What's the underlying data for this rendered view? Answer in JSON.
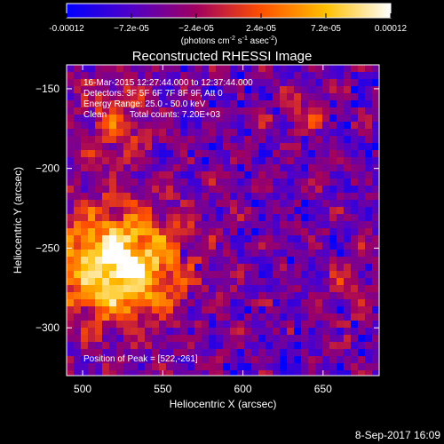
{
  "chart_data": {
    "type": "heatmap",
    "title": "Reconstructed RHESSI Image",
    "xlabel": "Heliocentric X (arcsec)",
    "ylabel": "Heliocentric Y (arcsec)",
    "xlim": [
      490,
      685
    ],
    "ylim": [
      -330,
      -135
    ],
    "x_ticks": [
      500,
      550,
      600,
      650
    ],
    "y_ticks": [
      -150,
      -200,
      -250,
      -300
    ],
    "colorbar": {
      "range": [
        -0.00012,
        0.00012
      ],
      "tick_labels": [
        "-0.00012",
        "−7.2e-05",
        "−2.4e-05",
        "2.4e-05",
        "7.2e-05",
        "0.00012"
      ],
      "colors": [
        "#0000ff",
        "#5000c8",
        "#a00060",
        "#ff5000",
        "#ffc000",
        "#ffffff"
      ],
      "unit_parts": [
        "(photons cm",
        "-2",
        " s",
        "-1",
        " asec",
        "-2",
        ")"
      ]
    },
    "annotations": {
      "time_range": "16-Mar-2015 12:27:44.000 to 12:37:44.000",
      "detectors": "Detectors: 3F 5F 6F 7F 8F 9F, Att 0",
      "energy_range": "Energy Range: 25.0 - 50.0 keV",
      "algorithm": "Clean",
      "total_counts": "Total counts: 7.20E+03",
      "peak_position": "Position of Peak = [522,-261]"
    },
    "peak": {
      "x": 522,
      "y": -261
    }
  },
  "footer": {
    "timestamp": "8-Sep-2017 16:09"
  }
}
